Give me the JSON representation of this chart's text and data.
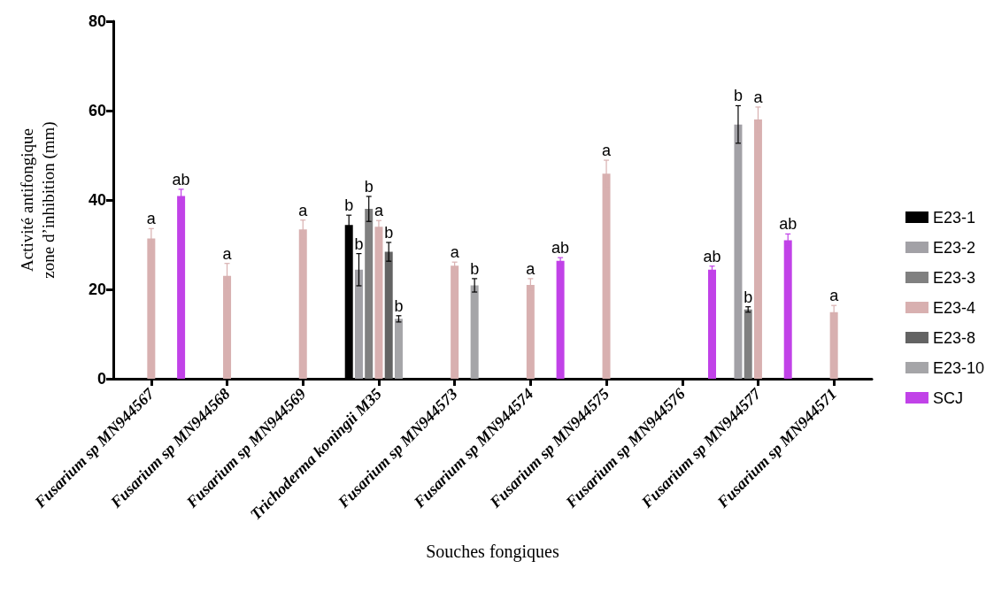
{
  "chart_data": {
    "type": "bar",
    "xlabel": "Souches fongiques",
    "ylabel": "Activité antifongique\nzone d’inhibition (mm)",
    "categories": [
      "Fusarium sp MN944567",
      "Fusarium sp MN944568",
      "Fusarium sp MN944569",
      "Trichoderma koningii M35",
      "Fusarium sp MN944573",
      "Fusarium sp MN944574",
      "Fusarium sp MN944575",
      "Fusarium sp MN944576",
      "Fusarium sp MN944577",
      "Fusarium sp MN944571"
    ],
    "ylim": [
      0,
      80
    ],
    "yticks": [
      0,
      20,
      40,
      60,
      80
    ],
    "grid": false,
    "legend": "right",
    "series": [
      {
        "name": "E23-1",
        "color": "#000000",
        "values": [
          null,
          null,
          null,
          34.4,
          null,
          null,
          null,
          null,
          null,
          null
        ],
        "errors": [
          null,
          null,
          null,
          2.2,
          null,
          null,
          null,
          null,
          null,
          null
        ],
        "value_labels": [
          null,
          null,
          null,
          "b",
          null,
          null,
          null,
          null,
          null,
          null
        ]
      },
      {
        "name": "E23-2",
        "color": "#a2a1a6",
        "values": [
          null,
          null,
          null,
          24.4,
          null,
          null,
          null,
          null,
          56.9,
          null
        ],
        "errors": [
          null,
          null,
          null,
          3.6,
          null,
          null,
          null,
          null,
          4.2,
          null
        ],
        "value_labels": [
          null,
          null,
          null,
          "b",
          null,
          null,
          null,
          null,
          "b",
          null
        ]
      },
      {
        "name": "E23-3",
        "color": "#808080",
        "values": [
          null,
          null,
          null,
          38.0,
          null,
          null,
          null,
          null,
          15.5,
          null
        ],
        "errors": [
          null,
          null,
          null,
          2.8,
          null,
          null,
          null,
          null,
          0.6,
          null
        ],
        "value_labels": [
          null,
          null,
          null,
          "b",
          null,
          null,
          null,
          null,
          "b",
          null
        ]
      },
      {
        "name": "E23-4",
        "color": "#d8b0b0",
        "values": [
          31.4,
          23.0,
          33.4,
          34.0,
          25.3,
          21.0,
          45.9,
          null,
          58.0,
          14.9
        ],
        "errors": [
          2.2,
          2.8,
          2.1,
          1.4,
          0.8,
          1.4,
          3.0,
          null,
          2.8,
          1.5
        ],
        "value_labels": [
          "a",
          "a",
          "a",
          "a",
          "a",
          "a",
          "a",
          null,
          "a",
          "a"
        ]
      },
      {
        "name": "E23-8",
        "color": "#636363",
        "values": [
          null,
          null,
          null,
          28.4,
          null,
          null,
          null,
          null,
          null,
          null
        ],
        "errors": [
          null,
          null,
          null,
          2.1,
          null,
          null,
          null,
          null,
          null,
          null
        ],
        "value_labels": [
          null,
          null,
          null,
          "b",
          null,
          null,
          null,
          null,
          null,
          null
        ]
      },
      {
        "name": "E23-10",
        "color": "#a5a5a8",
        "values": [
          null,
          null,
          null,
          13.4,
          20.9,
          null,
          null,
          null,
          null,
          null
        ],
        "errors": [
          null,
          null,
          null,
          0.7,
          1.5,
          null,
          null,
          null,
          null,
          null
        ],
        "value_labels": [
          null,
          null,
          null,
          "b",
          "b",
          null,
          null,
          null,
          null,
          null
        ]
      },
      {
        "name": "SCJ",
        "color": "#c142e8",
        "values": [
          40.9,
          null,
          null,
          null,
          null,
          26.4,
          null,
          24.4,
          31.0,
          null
        ],
        "errors": [
          1.5,
          null,
          null,
          null,
          null,
          0.7,
          null,
          0.8,
          1.4,
          null
        ],
        "value_labels": [
          "ab",
          null,
          null,
          null,
          null,
          "ab",
          null,
          "ab",
          "ab",
          null
        ]
      }
    ]
  }
}
